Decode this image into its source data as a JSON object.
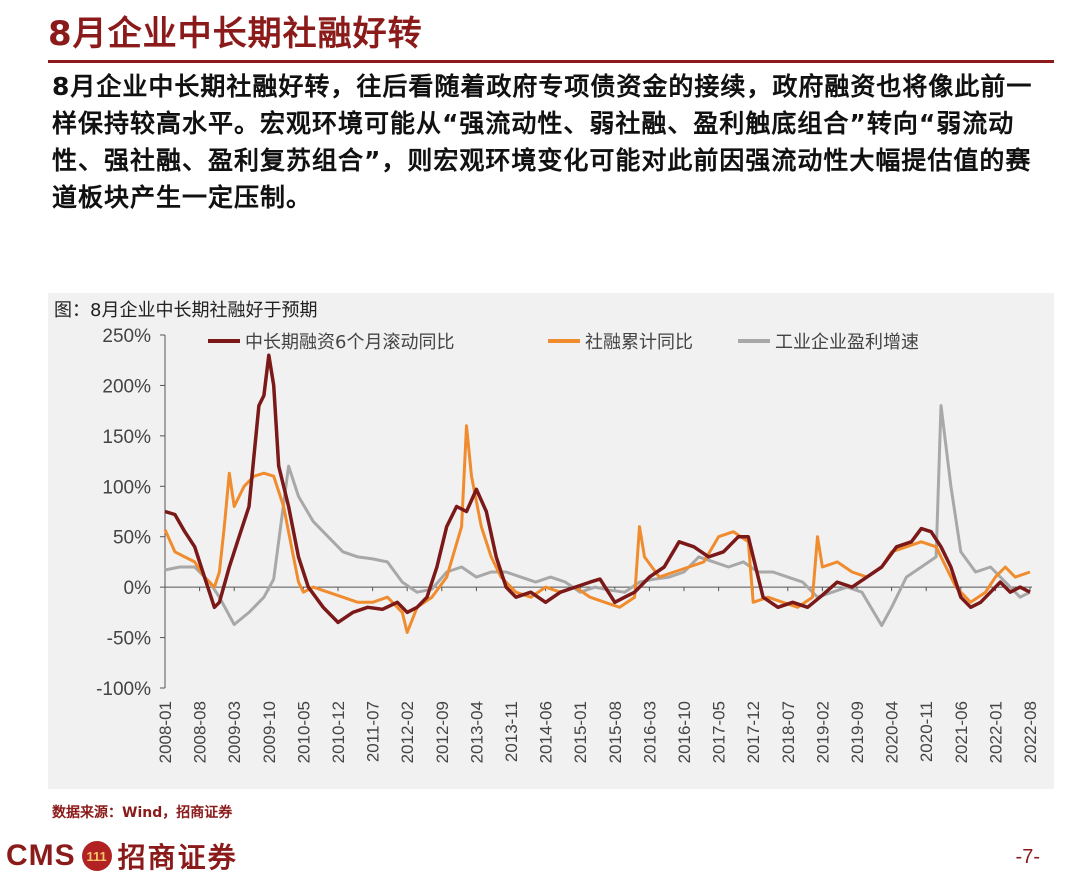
{
  "header": {
    "title": "8月企业中长期社融好转",
    "paragraph": "8月企业中长期社融好转，往后看随着政府专项债资金的接续，政府融资也将像此前一样保持较高水平。宏观环境可能从“强流动性、弱社融、盈利触底组合”转向“弱流动性、强社融、盈利复苏组合”，则宏观环境变化可能对此前因强流动性大幅提估值的赛道板块产生一定压制。"
  },
  "figure": {
    "caption": "图：8月企业中长期社融好于预期",
    "source": "数据来源：Wind，招商证券"
  },
  "footer": {
    "logo_text": "CMS",
    "logo_mark": "111",
    "logo_cn": "招商证券",
    "page": "-7-"
  },
  "chart_data": {
    "type": "line",
    "x_ticks": [
      "2008-01",
      "2008-08",
      "2009-03",
      "2009-10",
      "2010-05",
      "2010-12",
      "2011-07",
      "2012-02",
      "2012-09",
      "2013-04",
      "2013-11",
      "2014-06",
      "2015-01",
      "2015-08",
      "2016-03",
      "2016-10",
      "2017-05",
      "2017-12",
      "2018-07",
      "2019-02",
      "2019-09",
      "2020-04",
      "2020-11",
      "2021-06",
      "2022-01",
      "2022-08"
    ],
    "y_ticks": [
      "250%",
      "200%",
      "150%",
      "100%",
      "50%",
      "0%",
      "-50%",
      "-100%"
    ],
    "ylim": [
      -100,
      250
    ],
    "x_start": "2008-01",
    "x_end": "2022-08",
    "legend_position": "top",
    "grid": false,
    "series": [
      {
        "name": "中长期融资6个月滚动同比",
        "color": "#7b1818",
        "points": [
          [
            "2008-01",
            75
          ],
          [
            "2008-03",
            72
          ],
          [
            "2008-05",
            55
          ],
          [
            "2008-07",
            40
          ],
          [
            "2008-09",
            10
          ],
          [
            "2008-11",
            -20
          ],
          [
            "2008-12",
            -15
          ],
          [
            "2009-02",
            20
          ],
          [
            "2009-04",
            50
          ],
          [
            "2009-06",
            80
          ],
          [
            "2009-08",
            180
          ],
          [
            "2009-09",
            190
          ],
          [
            "2009-10",
            230
          ],
          [
            "2009-11",
            200
          ],
          [
            "2009-12",
            120
          ],
          [
            "2010-02",
            80
          ],
          [
            "2010-04",
            30
          ],
          [
            "2010-06",
            0
          ],
          [
            "2010-09",
            -20
          ],
          [
            "2010-12",
            -35
          ],
          [
            "2011-03",
            -25
          ],
          [
            "2011-06",
            -20
          ],
          [
            "2011-09",
            -22
          ],
          [
            "2011-12",
            -15
          ],
          [
            "2012-02",
            -25
          ],
          [
            "2012-04",
            -20
          ],
          [
            "2012-06",
            -10
          ],
          [
            "2012-08",
            20
          ],
          [
            "2012-10",
            60
          ],
          [
            "2012-12",
            80
          ],
          [
            "2013-02",
            75
          ],
          [
            "2013-04",
            97
          ],
          [
            "2013-06",
            75
          ],
          [
            "2013-08",
            30
          ],
          [
            "2013-10",
            0
          ],
          [
            "2013-12",
            -10
          ],
          [
            "2014-03",
            -5
          ],
          [
            "2014-06",
            -15
          ],
          [
            "2014-09",
            -5
          ],
          [
            "2014-12",
            0
          ],
          [
            "2015-03",
            5
          ],
          [
            "2015-05",
            8
          ],
          [
            "2015-08",
            -15
          ],
          [
            "2015-10",
            -10
          ],
          [
            "2015-12",
            -5
          ],
          [
            "2016-03",
            10
          ],
          [
            "2016-06",
            20
          ],
          [
            "2016-09",
            45
          ],
          [
            "2016-12",
            40
          ],
          [
            "2017-03",
            30
          ],
          [
            "2017-06",
            35
          ],
          [
            "2017-09",
            50
          ],
          [
            "2017-11",
            50
          ],
          [
            "2017-12",
            30
          ],
          [
            "2018-02",
            -10
          ],
          [
            "2018-05",
            -20
          ],
          [
            "2018-08",
            -15
          ],
          [
            "2018-11",
            -20
          ],
          [
            "2019-02",
            -8
          ],
          [
            "2019-05",
            5
          ],
          [
            "2019-08",
            0
          ],
          [
            "2019-11",
            10
          ],
          [
            "2020-02",
            20
          ],
          [
            "2020-05",
            40
          ],
          [
            "2020-08",
            45
          ],
          [
            "2020-10",
            58
          ],
          [
            "2020-12",
            55
          ],
          [
            "2021-02",
            40
          ],
          [
            "2021-04",
            20
          ],
          [
            "2021-06",
            -10
          ],
          [
            "2021-08",
            -20
          ],
          [
            "2021-10",
            -15
          ],
          [
            "2021-12",
            -5
          ],
          [
            "2022-02",
            5
          ],
          [
            "2022-04",
            -5
          ],
          [
            "2022-06",
            0
          ],
          [
            "2022-08",
            -5
          ]
        ]
      },
      {
        "name": "社融累计同比",
        "color": "#f08c2e",
        "points": [
          [
            "2008-01",
            57
          ],
          [
            "2008-03",
            35
          ],
          [
            "2008-05",
            30
          ],
          [
            "2008-07",
            25
          ],
          [
            "2008-09",
            10
          ],
          [
            "2008-11",
            0
          ],
          [
            "2008-12",
            15
          ],
          [
            "2009-01",
            60
          ],
          [
            "2009-02",
            113
          ],
          [
            "2009-03",
            80
          ],
          [
            "2009-05",
            100
          ],
          [
            "2009-07",
            110
          ],
          [
            "2009-09",
            113
          ],
          [
            "2009-11",
            110
          ],
          [
            "2010-01",
            80
          ],
          [
            "2010-03",
            30
          ],
          [
            "2010-04",
            5
          ],
          [
            "2010-05",
            -5
          ],
          [
            "2010-07",
            0
          ],
          [
            "2010-10",
            -5
          ],
          [
            "2011-01",
            -10
          ],
          [
            "2011-04",
            -15
          ],
          [
            "2011-07",
            -15
          ],
          [
            "2011-10",
            -10
          ],
          [
            "2012-01",
            -25
          ],
          [
            "2012-02",
            -45
          ],
          [
            "2012-04",
            -20
          ],
          [
            "2012-07",
            -10
          ],
          [
            "2012-10",
            10
          ],
          [
            "2013-01",
            60
          ],
          [
            "2013-02",
            160
          ],
          [
            "2013-03",
            110
          ],
          [
            "2013-05",
            60
          ],
          [
            "2013-07",
            30
          ],
          [
            "2013-09",
            10
          ],
          [
            "2013-12",
            -5
          ],
          [
            "2014-03",
            -10
          ],
          [
            "2014-06",
            0
          ],
          [
            "2014-09",
            -5
          ],
          [
            "2014-12",
            0
          ],
          [
            "2015-03",
            -10
          ],
          [
            "2015-06",
            -15
          ],
          [
            "2015-09",
            -20
          ],
          [
            "2015-12",
            -10
          ],
          [
            "2016-01",
            60
          ],
          [
            "2016-02",
            30
          ],
          [
            "2016-05",
            10
          ],
          [
            "2016-08",
            15
          ],
          [
            "2016-11",
            20
          ],
          [
            "2017-02",
            25
          ],
          [
            "2017-05",
            50
          ],
          [
            "2017-08",
            55
          ],
          [
            "2017-11",
            45
          ],
          [
            "2017-12",
            -15
          ],
          [
            "2018-03",
            -10
          ],
          [
            "2018-06",
            -15
          ],
          [
            "2018-09",
            -20
          ],
          [
            "2018-12",
            -10
          ],
          [
            "2019-01",
            50
          ],
          [
            "2019-02",
            20
          ],
          [
            "2019-05",
            25
          ],
          [
            "2019-08",
            15
          ],
          [
            "2019-11",
            10
          ],
          [
            "2020-02",
            20
          ],
          [
            "2020-04",
            35
          ],
          [
            "2020-07",
            40
          ],
          [
            "2020-10",
            45
          ],
          [
            "2021-01",
            40
          ],
          [
            "2021-03",
            20
          ],
          [
            "2021-05",
            0
          ],
          [
            "2021-08",
            -15
          ],
          [
            "2021-11",
            -5
          ],
          [
            "2022-01",
            10
          ],
          [
            "2022-03",
            20
          ],
          [
            "2022-05",
            10
          ],
          [
            "2022-08",
            15
          ]
        ]
      },
      {
        "name": "工业企业盈利增速",
        "color": "#a8a8a8",
        "points": [
          [
            "2008-01",
            17
          ],
          [
            "2008-04",
            20
          ],
          [
            "2008-07",
            20
          ],
          [
            "2008-10",
            5
          ],
          [
            "2008-12",
            -10
          ],
          [
            "2009-03",
            -37
          ],
          [
            "2009-06",
            -25
          ],
          [
            "2009-09",
            -10
          ],
          [
            "2009-11",
            8
          ],
          [
            "2010-02",
            120
          ],
          [
            "2010-04",
            90
          ],
          [
            "2010-07",
            65
          ],
          [
            "2010-10",
            50
          ],
          [
            "2011-01",
            35
          ],
          [
            "2011-04",
            30
          ],
          [
            "2011-07",
            28
          ],
          [
            "2011-10",
            25
          ],
          [
            "2012-01",
            5
          ],
          [
            "2012-04",
            -5
          ],
          [
            "2012-07",
            -2
          ],
          [
            "2012-10",
            15
          ],
          [
            "2013-01",
            20
          ],
          [
            "2013-04",
            10
          ],
          [
            "2013-07",
            15
          ],
          [
            "2013-10",
            15
          ],
          [
            "2014-01",
            10
          ],
          [
            "2014-04",
            5
          ],
          [
            "2014-07",
            10
          ],
          [
            "2014-10",
            5
          ],
          [
            "2015-01",
            -5
          ],
          [
            "2015-04",
            0
          ],
          [
            "2015-07",
            -3
          ],
          [
            "2015-10",
            -5
          ],
          [
            "2016-01",
            5
          ],
          [
            "2016-04",
            8
          ],
          [
            "2016-07",
            10
          ],
          [
            "2016-10",
            15
          ],
          [
            "2017-01",
            30
          ],
          [
            "2017-04",
            25
          ],
          [
            "2017-07",
            20
          ],
          [
            "2017-10",
            25
          ],
          [
            "2018-01",
            15
          ],
          [
            "2018-04",
            15
          ],
          [
            "2018-07",
            10
          ],
          [
            "2018-10",
            5
          ],
          [
            "2019-01",
            -10
          ],
          [
            "2019-04",
            -5
          ],
          [
            "2019-07",
            0
          ],
          [
            "2019-10",
            -5
          ],
          [
            "2020-02",
            -38
          ],
          [
            "2020-04",
            -20
          ],
          [
            "2020-07",
            10
          ],
          [
            "2020-10",
            20
          ],
          [
            "2021-01",
            30
          ],
          [
            "2021-02",
            180
          ],
          [
            "2021-04",
            100
          ],
          [
            "2021-06",
            35
          ],
          [
            "2021-09",
            15
          ],
          [
            "2021-12",
            20
          ],
          [
            "2022-03",
            5
          ],
          [
            "2022-06",
            -10
          ],
          [
            "2022-08",
            -5
          ]
        ]
      }
    ]
  }
}
